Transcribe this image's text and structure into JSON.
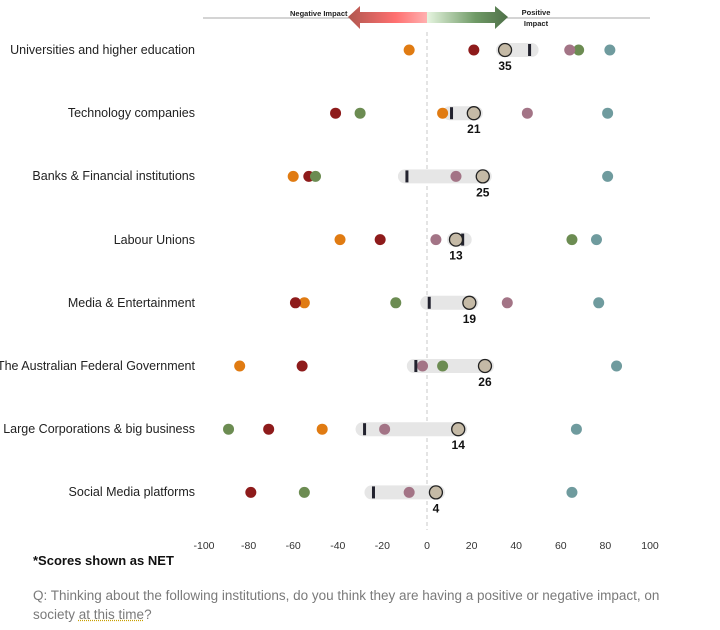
{
  "header": {
    "negative_label": "Negative Impact",
    "positive_label": "Positive Impact"
  },
  "chart_data": {
    "type": "scatter",
    "title": "",
    "xlim": [
      -100,
      100
    ],
    "xticks": [
      "-100",
      "-80",
      "-60",
      "-40",
      "-20",
      "0",
      "20",
      "40",
      "60",
      "80",
      "100"
    ],
    "grid": false,
    "categories": [
      "Universities and higher education",
      "Technology companies",
      "Banks & Financial institutions",
      "Labour Unions",
      "Media & Entertainment",
      "The Australian Federal Government",
      "Large Corporations & big business",
      "Social Media platforms"
    ],
    "net_scores": [
      35,
      21,
      25,
      13,
      19,
      26,
      14,
      4
    ],
    "comparison_markers": [
      46,
      11,
      -9,
      16,
      1,
      -5,
      -28,
      -24
    ],
    "series": [
      {
        "color": "#e07b12",
        "values": [
          -8,
          7,
          -60,
          -39,
          -55,
          -84,
          -47,
          null
        ]
      },
      {
        "color": "#8e1b1b",
        "values": [
          21,
          -41,
          -53,
          -21,
          -59,
          -56,
          -71,
          -79
        ]
      },
      {
        "color": "#6c8c52",
        "values": [
          68,
          -30,
          -50,
          65,
          -14,
          7,
          -89,
          -55
        ]
      },
      {
        "color": "#a37486",
        "values": [
          64,
          45,
          13,
          4,
          36,
          -2,
          -19,
          -8
        ]
      },
      {
        "color": "#6f9b9e",
        "values": [
          82,
          81,
          81,
          76,
          77,
          85,
          67,
          65
        ]
      }
    ],
    "net_color": "#c5baa6"
  },
  "footer": {
    "note": "*Scores shown as NET",
    "question_a": "Q: Thinking about the following institutions, do you think they are having a positive or negative impact, on society ",
    "question_b": "at this time",
    "question_c": "?"
  }
}
